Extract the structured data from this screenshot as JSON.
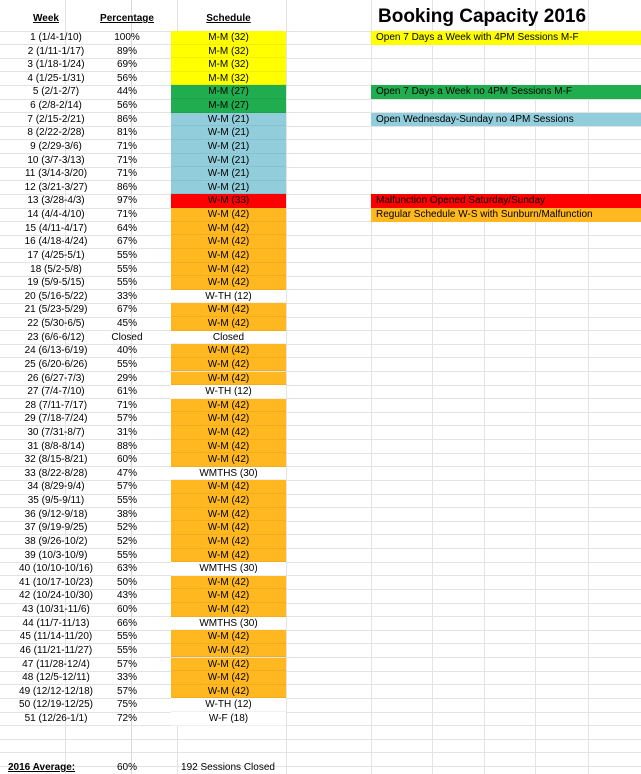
{
  "title": "Booking Capacity 2016",
  "headers": {
    "week": "Week",
    "percentage": "Percentage",
    "schedule": "Schedule"
  },
  "colors": {
    "yellow": "#ffff00",
    "green": "#1fad4f",
    "blue": "#92cddc",
    "red": "#ff0000",
    "orange": "#ffb81f",
    "white": "#ffffff"
  },
  "legend": [
    {
      "text": "Open 7 Days a Week with 4PM Sessions M-F",
      "color": "yellow"
    },
    {
      "text": "Open 7 Days a Week no 4PM  Sessions M-F",
      "color": "green"
    },
    {
      "text": "Open Wednesday-Sunday no 4PM Sessions",
      "color": "blue"
    },
    {
      "text": "Malfunction Opened Saturday/Sunday",
      "color": "red"
    },
    {
      "text": "Regular Schedule W-S with Sunburn/Malfunction",
      "color": "orange"
    }
  ],
  "rows": [
    {
      "week": "1 (1/4-1/10)",
      "pct": "100%",
      "schedule": "M-M (32)",
      "color": "yellow"
    },
    {
      "week": "2 (1/11-1/17)",
      "pct": "89%",
      "schedule": "M-M (32)",
      "color": "yellow"
    },
    {
      "week": "3 (1/18-1/24)",
      "pct": "69%",
      "schedule": "M-M (32)",
      "color": "yellow"
    },
    {
      "week": "4 (1/25-1/31)",
      "pct": "56%",
      "schedule": "M-M (32)",
      "color": "yellow"
    },
    {
      "week": "5 (2/1-2/7)",
      "pct": "44%",
      "schedule": "M-M (27)",
      "color": "green"
    },
    {
      "week": "6 (2/8-2/14)",
      "pct": "56%",
      "schedule": "M-M (27)",
      "color": "green"
    },
    {
      "week": "7 (2/15-2/21)",
      "pct": "86%",
      "schedule": "W-M (21)",
      "color": "blue"
    },
    {
      "week": "8 (2/22-2/28)",
      "pct": "81%",
      "schedule": "W-M (21)",
      "color": "blue"
    },
    {
      "week": "9 (2/29-3/6)",
      "pct": "71%",
      "schedule": "W-M (21)",
      "color": "blue"
    },
    {
      "week": "10 (3/7-3/13)",
      "pct": "71%",
      "schedule": "W-M (21)",
      "color": "blue"
    },
    {
      "week": "11 (3/14-3/20)",
      "pct": "71%",
      "schedule": "W-M (21)",
      "color": "blue"
    },
    {
      "week": "12 (3/21-3/27)",
      "pct": "86%",
      "schedule": "W-M (21)",
      "color": "blue"
    },
    {
      "week": "13 (3/28-4/3)",
      "pct": "97%",
      "schedule": "W-M (33)",
      "color": "red"
    },
    {
      "week": "14 (4/4-4/10)",
      "pct": "71%",
      "schedule": "W-M (42)",
      "color": "orange"
    },
    {
      "week": "15 (4/11-4/17)",
      "pct": "64%",
      "schedule": "W-M (42)",
      "color": "orange"
    },
    {
      "week": "16 (4/18-4/24)",
      "pct": "67%",
      "schedule": "W-M (42)",
      "color": "orange"
    },
    {
      "week": "17 (4/25-5/1)",
      "pct": "55%",
      "schedule": "W-M (42)",
      "color": "orange"
    },
    {
      "week": "18 (5/2-5/8)",
      "pct": "55%",
      "schedule": "W-M (42)",
      "color": "orange"
    },
    {
      "week": "19 (5/9-5/15)",
      "pct": "55%",
      "schedule": "W-M (42)",
      "color": "orange"
    },
    {
      "week": "20 (5/16-5/22)",
      "pct": "33%",
      "schedule": "W-TH (12)",
      "color": "white"
    },
    {
      "week": "21 (5/23-5/29)",
      "pct": "67%",
      "schedule": "W-M (42)",
      "color": "orange"
    },
    {
      "week": "22 (5/30-6/5)",
      "pct": "45%",
      "schedule": "W-M (42)",
      "color": "orange"
    },
    {
      "week": "23 (6/6-6/12)",
      "pct": "Closed",
      "schedule": "Closed",
      "color": "white"
    },
    {
      "week": "24 (6/13-6/19)",
      "pct": "40%",
      "schedule": "W-M (42)",
      "color": "orange"
    },
    {
      "week": "25 (6/20-6/26)",
      "pct": "55%",
      "schedule": "W-M (42)",
      "color": "orange"
    },
    {
      "week": "26 (6/27-7/3)",
      "pct": "29%",
      "schedule": "W-M (42)",
      "color": "orange"
    },
    {
      "week": "27 (7/4-7/10)",
      "pct": "61%",
      "schedule": "W-TH (12)",
      "color": "white"
    },
    {
      "week": "28 (7/11-7/17)",
      "pct": "71%",
      "schedule": "W-M (42)",
      "color": "orange"
    },
    {
      "week": "29 (7/18-7/24)",
      "pct": "57%",
      "schedule": "W-M (42)",
      "color": "orange"
    },
    {
      "week": "30 (7/31-8/7)",
      "pct": "31%",
      "schedule": "W-M (42)",
      "color": "orange"
    },
    {
      "week": "31 (8/8-8/14)",
      "pct": "88%",
      "schedule": "W-M (42)",
      "color": "orange"
    },
    {
      "week": "32 (8/15-8/21)",
      "pct": "60%",
      "schedule": "W-M (42)",
      "color": "orange"
    },
    {
      "week": "33 (8/22-8/28)",
      "pct": "47%",
      "schedule": "WMTHS (30)",
      "color": "white"
    },
    {
      "week": "34 (8/29-9/4)",
      "pct": "57%",
      "schedule": "W-M (42)",
      "color": "orange"
    },
    {
      "week": "35 (9/5-9/11)",
      "pct": "55%",
      "schedule": "W-M (42)",
      "color": "orange"
    },
    {
      "week": "36 (9/12-9/18)",
      "pct": "38%",
      "schedule": "W-M (42)",
      "color": "orange"
    },
    {
      "week": "37 (9/19-9/25)",
      "pct": "52%",
      "schedule": "W-M (42)",
      "color": "orange"
    },
    {
      "week": "38 (9/26-10/2)",
      "pct": "52%",
      "schedule": "W-M (42)",
      "color": "orange"
    },
    {
      "week": "39 (10/3-10/9)",
      "pct": "55%",
      "schedule": "W-M (42)",
      "color": "orange"
    },
    {
      "week": "40 (10/10-10/16)",
      "pct": "63%",
      "schedule": "WMTHS (30)",
      "color": "white"
    },
    {
      "week": "41 (10/17-10/23)",
      "pct": "50%",
      "schedule": "W-M (42)",
      "color": "orange"
    },
    {
      "week": "42 (10/24-10/30)",
      "pct": "43%",
      "schedule": "W-M (42)",
      "color": "orange"
    },
    {
      "week": "43 (10/31-11/6)",
      "pct": "60%",
      "schedule": "W-M (42)",
      "color": "orange"
    },
    {
      "week": "44 (11/7-11/13)",
      "pct": "66%",
      "schedule": "WMTHS (30)",
      "color": "white"
    },
    {
      "week": "45 (11/14-11/20)",
      "pct": "55%",
      "schedule": "W-M (42)",
      "color": "orange"
    },
    {
      "week": "46 (11/21-11/27)",
      "pct": "55%",
      "schedule": "W-M (42)",
      "color": "orange"
    },
    {
      "week": "47 (11/28-12/4)",
      "pct": "57%",
      "schedule": "W-M (42)",
      "color": "orange"
    },
    {
      "week": "48 (12/5-12/11)",
      "pct": "33%",
      "schedule": "W-M (42)",
      "color": "orange"
    },
    {
      "week": "49 (12/12-12/18)",
      "pct": "57%",
      "schedule": "W-M (42)",
      "color": "orange"
    },
    {
      "week": "50 (12/19-12/25)",
      "pct": "75%",
      "schedule": "W-TH (12)",
      "color": "white"
    },
    {
      "week": "51 (12/26-1/1)",
      "pct": "72%",
      "schedule": "W-F (18)",
      "color": "white"
    }
  ],
  "footer": {
    "label": "2016 Average:",
    "average": "60%",
    "closed": "192 Sessions Closed"
  }
}
